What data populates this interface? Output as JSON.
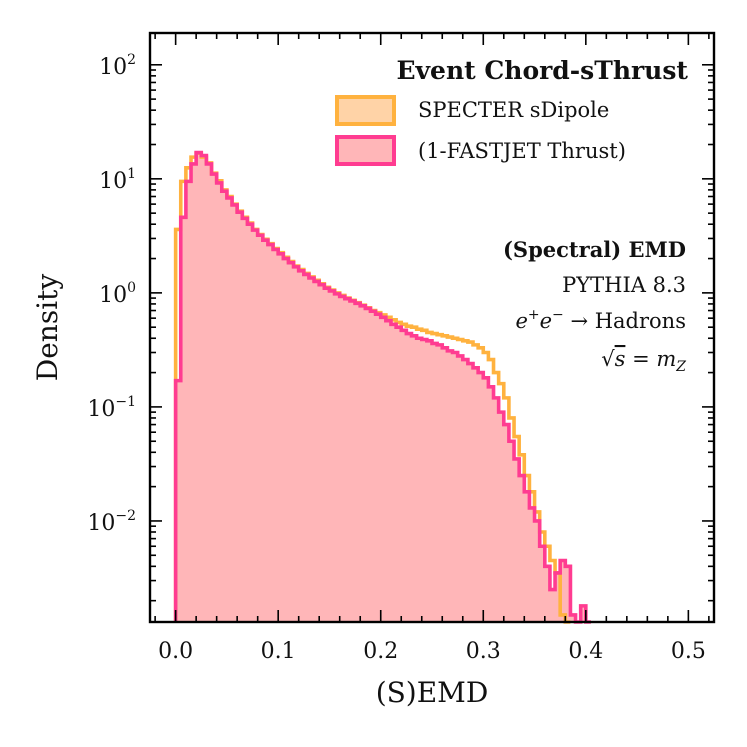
{
  "chart_data": {
    "type": "histogram-step",
    "yscale": "log",
    "xlabel": "(S)EMD",
    "ylabel": "Density",
    "xlim": [
      -0.025,
      0.525
    ],
    "ylim": [
      0.0013,
      190
    ],
    "x_ticks": [
      {
        "value": 0.0,
        "label": "0.0"
      },
      {
        "value": 0.1,
        "label": "0.1"
      },
      {
        "value": 0.2,
        "label": "0.2"
      },
      {
        "value": 0.3,
        "label": "0.3"
      },
      {
        "value": 0.4,
        "label": "0.4"
      },
      {
        "value": 0.5,
        "label": "0.5"
      }
    ],
    "y_ticks": [
      {
        "value": 0.01,
        "base": "10",
        "exp": "−2"
      },
      {
        "value": 0.1,
        "base": "10",
        "exp": "−1"
      },
      {
        "value": 1,
        "base": "10",
        "exp": "0"
      },
      {
        "value": 10,
        "base": "10",
        "exp": "1"
      },
      {
        "value": 100,
        "base": "10",
        "exp": "2"
      }
    ],
    "legend": {
      "title": "Event Chord-sThrust",
      "position": "top-right",
      "entries": [
        {
          "label": "SPECTER sDipole",
          "color": "#FFB23F"
        },
        {
          "label": "(1-FASTJET Thrust)",
          "color": "#FF3C91"
        }
      ]
    },
    "annotations": {
      "title": "(Spectral) EMD",
      "generator": "PYTHIA 8.3",
      "process_lhs": "e",
      "process_sup1": "+",
      "process_mid": "e",
      "process_sup2": "−",
      "process_rhs": " → Hadrons",
      "energy_lhs": "√",
      "energy_var": "s",
      "energy_eq": " = ",
      "energy_m": "m",
      "energy_sub": "Z"
    },
    "fill_color": "#FFB6B8",
    "series": [
      {
        "name": "SPECTER sDipole",
        "color": "#FFB23F",
        "edges": [
          0,
          0.005,
          0.01,
          0.015,
          0.02,
          0.025,
          0.03,
          0.035,
          0.04,
          0.045,
          0.05,
          0.055,
          0.06,
          0.065,
          0.07,
          0.075,
          0.08,
          0.085,
          0.09,
          0.095,
          0.1,
          0.105,
          0.11,
          0.115,
          0.12,
          0.125,
          0.13,
          0.135,
          0.14,
          0.145,
          0.15,
          0.155,
          0.16,
          0.165,
          0.17,
          0.175,
          0.18,
          0.185,
          0.19,
          0.195,
          0.2,
          0.205,
          0.21,
          0.215,
          0.22,
          0.225,
          0.23,
          0.235,
          0.24,
          0.245,
          0.25,
          0.255,
          0.26,
          0.265,
          0.27,
          0.275,
          0.28,
          0.285,
          0.29,
          0.295,
          0.3,
          0.305,
          0.31,
          0.315,
          0.32,
          0.325,
          0.33,
          0.335,
          0.34,
          0.345,
          0.35,
          0.355,
          0.36,
          0.365,
          0.37,
          0.375,
          0.38,
          0.385
        ],
        "values": [
          3.6,
          9.5,
          12.5,
          15.5,
          16.8,
          15.5,
          13.8,
          11.2,
          9.6,
          8.0,
          7.0,
          6.0,
          5.2,
          4.6,
          4.1,
          3.6,
          3.25,
          2.95,
          2.7,
          2.45,
          2.25,
          2.05,
          1.88,
          1.72,
          1.6,
          1.48,
          1.38,
          1.29,
          1.2,
          1.12,
          1.06,
          1.0,
          0.95,
          0.9,
          0.86,
          0.82,
          0.78,
          0.74,
          0.7,
          0.67,
          0.64,
          0.61,
          0.58,
          0.55,
          0.53,
          0.51,
          0.5,
          0.48,
          0.47,
          0.45,
          0.44,
          0.43,
          0.42,
          0.41,
          0.4,
          0.39,
          0.38,
          0.37,
          0.35,
          0.33,
          0.3,
          0.26,
          0.2,
          0.16,
          0.12,
          0.08,
          0.055,
          0.038,
          0.025,
          0.018,
          0.012,
          0.008,
          0.006,
          0.0045,
          0.0035,
          0.0015,
          0.0004
        ]
      },
      {
        "name": "(1-FASTJET Thrust)",
        "color": "#FF3C91",
        "edges": [
          0,
          0.005,
          0.01,
          0.015,
          0.02,
          0.025,
          0.03,
          0.035,
          0.04,
          0.045,
          0.05,
          0.055,
          0.06,
          0.065,
          0.07,
          0.075,
          0.08,
          0.085,
          0.09,
          0.095,
          0.1,
          0.105,
          0.11,
          0.115,
          0.12,
          0.125,
          0.13,
          0.135,
          0.14,
          0.145,
          0.15,
          0.155,
          0.16,
          0.165,
          0.17,
          0.175,
          0.18,
          0.185,
          0.19,
          0.195,
          0.2,
          0.205,
          0.21,
          0.215,
          0.22,
          0.225,
          0.23,
          0.235,
          0.24,
          0.245,
          0.25,
          0.255,
          0.26,
          0.265,
          0.27,
          0.275,
          0.28,
          0.285,
          0.29,
          0.295,
          0.3,
          0.305,
          0.31,
          0.315,
          0.32,
          0.325,
          0.33,
          0.335,
          0.34,
          0.345,
          0.35,
          0.355,
          0.36,
          0.365,
          0.37,
          0.375,
          0.38,
          0.385,
          0.39,
          0.395,
          0.4,
          0.405
        ],
        "values": [
          0.17,
          4.6,
          9.5,
          13.5,
          17.0,
          16.0,
          13.5,
          11.0,
          9.2,
          7.8,
          6.8,
          5.9,
          5.1,
          4.5,
          4.0,
          3.55,
          3.2,
          2.9,
          2.65,
          2.4,
          2.2,
          2.0,
          1.84,
          1.69,
          1.56,
          1.45,
          1.35,
          1.26,
          1.18,
          1.1,
          1.04,
          0.98,
          0.93,
          0.89,
          0.85,
          0.81,
          0.77,
          0.73,
          0.69,
          0.65,
          0.61,
          0.57,
          0.53,
          0.5,
          0.47,
          0.44,
          0.42,
          0.4,
          0.39,
          0.38,
          0.36,
          0.35,
          0.33,
          0.31,
          0.3,
          0.28,
          0.26,
          0.24,
          0.22,
          0.2,
          0.18,
          0.15,
          0.12,
          0.09,
          0.07,
          0.05,
          0.035,
          0.025,
          0.018,
          0.013,
          0.01,
          0.006,
          0.004,
          0.0025,
          0.0035,
          0.0045,
          0.004,
          0.0015,
          0.0008,
          0.0018,
          0.0008
        ]
      }
    ]
  }
}
